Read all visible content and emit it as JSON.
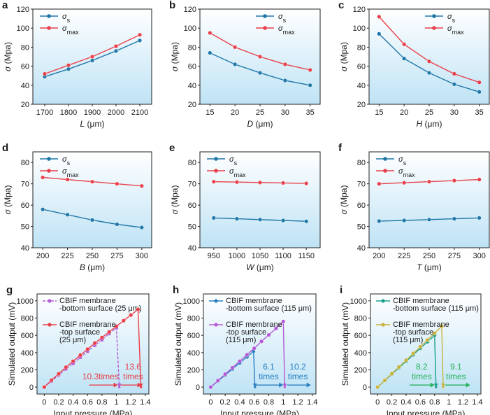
{
  "colors": {
    "sigma_s": "#1f77a8",
    "sigma_max": "#e8404a",
    "bg_top": "#ffffff",
    "bg_bottom": "#bfe3f5",
    "purple": "#b35ad6",
    "blue": "#2a7fc1",
    "teal": "#1aa18a",
    "olive": "#c7b23d",
    "green": "#27b35a"
  },
  "chart_data": [
    {
      "panel": "a",
      "type": "line",
      "xlabel": "L (μm)",
      "xlabel_sym": "L",
      "xlabel_unit": " (μm)",
      "ylabel": "σ (Mpa)",
      "ylabel_sym": "σ",
      "ylabel_unit": " (Mpa)",
      "xlim": [
        1650,
        2150
      ],
      "ylim": [
        20,
        120
      ],
      "xticks": [
        1700,
        1800,
        1900,
        2000,
        2100
      ],
      "yticks": [
        20,
        40,
        60,
        80,
        100,
        120
      ],
      "x": [
        1700,
        1800,
        1900,
        2000,
        2100
      ],
      "legend": "top-left",
      "series": [
        {
          "name": "σs",
          "sym": "σ",
          "sub": "s",
          "color_key": "sigma_s",
          "values": [
            49,
            57,
            66,
            76,
            87
          ]
        },
        {
          "name": "σmax",
          "sym": "σ",
          "sub": "max",
          "color_key": "sigma_max",
          "values": [
            52,
            61,
            70,
            81,
            93
          ]
        }
      ]
    },
    {
      "panel": "b",
      "type": "line",
      "xlabel": "D (μm)",
      "xlabel_sym": "D",
      "xlabel_unit": " (μm)",
      "ylabel": "σ (Mpa)",
      "ylabel_sym": "σ",
      "ylabel_unit": " (Mpa)",
      "xlim": [
        13,
        37
      ],
      "ylim": [
        20,
        120
      ],
      "xticks": [
        15,
        20,
        25,
        30,
        35
      ],
      "yticks": [
        20,
        40,
        60,
        80,
        100,
        120
      ],
      "x": [
        15,
        20,
        25,
        30,
        35
      ],
      "legend": "top-right",
      "series": [
        {
          "name": "σs",
          "sym": "σ",
          "sub": "s",
          "color_key": "sigma_s",
          "values": [
            74,
            62,
            53,
            45,
            40
          ]
        },
        {
          "name": "σmax",
          "sym": "σ",
          "sub": "max",
          "color_key": "sigma_max",
          "values": [
            95,
            80,
            70,
            62,
            56
          ]
        }
      ]
    },
    {
      "panel": "c",
      "type": "line",
      "xlabel": "H (μm)",
      "xlabel_sym": "H",
      "xlabel_unit": " (μm)",
      "ylabel": "σ (Mpa)",
      "ylabel_sym": "σ",
      "ylabel_unit": " (Mpa)",
      "xlim": [
        13,
        37
      ],
      "ylim": [
        20,
        120
      ],
      "xticks": [
        15,
        20,
        25,
        30,
        35
      ],
      "yticks": [
        20,
        40,
        60,
        80,
        100,
        120
      ],
      "x": [
        15,
        20,
        25,
        30,
        35
      ],
      "legend": "top-right",
      "series": [
        {
          "name": "σs",
          "sym": "σ",
          "sub": "s",
          "color_key": "sigma_s",
          "values": [
            94,
            68,
            53,
            41,
            33
          ]
        },
        {
          "name": "σmax",
          "sym": "σ",
          "sub": "max",
          "color_key": "sigma_max",
          "values": [
            112,
            83,
            65,
            52,
            43
          ]
        }
      ]
    },
    {
      "panel": "d",
      "type": "line",
      "xlabel": "B (μm)",
      "xlabel_sym": "B",
      "xlabel_unit": " (μm)",
      "ylabel": "σ (Mpa)",
      "ylabel_sym": "σ",
      "ylabel_unit": " (Mpa)",
      "xlim": [
        190,
        310
      ],
      "ylim": [
        40,
        85
      ],
      "xticks": [
        200,
        225,
        250,
        275,
        300
      ],
      "yticks": [
        40,
        50,
        60,
        70,
        80
      ],
      "x": [
        200,
        225,
        250,
        275,
        300
      ],
      "legend": "top-left",
      "series": [
        {
          "name": "σs",
          "sym": "σ",
          "sub": "s",
          "color_key": "sigma_s",
          "values": [
            58,
            55.5,
            53,
            51,
            49.5
          ]
        },
        {
          "name": "σmax",
          "sym": "σ",
          "sub": "max",
          "color_key": "sigma_max",
          "values": [
            73,
            72,
            71,
            70,
            69
          ]
        }
      ]
    },
    {
      "panel": "e",
      "type": "line",
      "xlabel": "W (μm)",
      "xlabel_sym": "W",
      "xlabel_unit": " (μm)",
      "ylabel": "σ (Mpa)",
      "ylabel_sym": "σ",
      "ylabel_unit": " (Mpa)",
      "xlim": [
        920,
        1180
      ],
      "ylim": [
        40,
        85
      ],
      "xticks": [
        950,
        1000,
        1050,
        1100,
        1150
      ],
      "yticks": [
        40,
        50,
        60,
        70,
        80
      ],
      "x": [
        950,
        1000,
        1050,
        1100,
        1150
      ],
      "legend": "top-left",
      "series": [
        {
          "name": "σs",
          "sym": "σ",
          "sub": "s",
          "color_key": "sigma_s",
          "values": [
            54,
            53.6,
            53.2,
            52.8,
            52.4
          ]
        },
        {
          "name": "σmax",
          "sym": "σ",
          "sub": "max",
          "color_key": "sigma_max",
          "values": [
            71,
            70.8,
            70.6,
            70.4,
            70.2
          ]
        }
      ]
    },
    {
      "panel": "f",
      "type": "line",
      "xlabel": "T (μm)",
      "xlabel_sym": "T",
      "xlabel_unit": " (μm)",
      "ylabel": "σ (Mpa)",
      "ylabel_sym": "σ",
      "ylabel_unit": " (Mpa)",
      "xlim": [
        190,
        310
      ],
      "ylim": [
        40,
        85
      ],
      "xticks": [
        200,
        225,
        250,
        275,
        300
      ],
      "yticks": [
        40,
        50,
        60,
        70,
        80
      ],
      "x": [
        200,
        225,
        250,
        275,
        300
      ],
      "legend": "top-left",
      "series": [
        {
          "name": "σs",
          "sym": "σ",
          "sub": "s",
          "color_key": "sigma_s",
          "values": [
            52.5,
            52.8,
            53.2,
            53.6,
            54
          ]
        },
        {
          "name": "σmax",
          "sym": "σ",
          "sub": "max",
          "color_key": "sigma_max",
          "values": [
            70,
            70.5,
            71,
            71.5,
            72
          ]
        }
      ]
    },
    {
      "panel": "g",
      "type": "line",
      "xlabel": "Input pressure (MPa)",
      "ylabel": "Simulated output (mV)",
      "xlim": [
        -0.1,
        1.45
      ],
      "ylim": [
        -80,
        1080
      ],
      "xticks": [
        0,
        0.2,
        0.4,
        0.6,
        0.8,
        1,
        1.2,
        1.4
      ],
      "yticks": [
        0,
        200,
        400,
        600,
        800,
        1000
      ],
      "legend": "top-left",
      "series": [
        {
          "name": "CBIF membrane -bottom surface (25 μm)",
          "lines": [
            "CBIF membrane",
            "-bottom surface (25 μm)"
          ],
          "color_key": "purple",
          "dashed": true,
          "x": [
            0,
            0.1,
            0.2,
            0.3,
            0.4,
            0.5,
            0.6,
            0.7,
            0.8,
            0.9,
            1.0,
            1.04
          ],
          "y": [
            0,
            70,
            140,
            210,
            275,
            345,
            415,
            485,
            550,
            620,
            685,
            0
          ]
        },
        {
          "name": "CBIF membrane -top surface (25 μm)",
          "lines": [
            "CBIF membrane",
            "-top surface",
            "(25 μm)"
          ],
          "color_key": "sigma_max",
          "x": [
            0,
            0.1,
            0.2,
            0.3,
            0.4,
            0.5,
            0.6,
            0.7,
            0.8,
            0.9,
            1.0,
            1.1,
            1.2,
            1.3,
            1.34
          ],
          "y": [
            0,
            80,
            155,
            230,
            300,
            370,
            440,
            510,
            575,
            640,
            705,
            770,
            835,
            900,
            0
          ]
        }
      ],
      "annotations": [
        {
          "lines": [
            "10.3times"
          ],
          "x": 0.78,
          "y": 100,
          "color_key": "sigma_max",
          "arrow": [
            0.62,
            1.02
          ]
        },
        {
          "lines": [
            "13.6",
            "times"
          ],
          "x": 1.23,
          "y": 100,
          "color_key": "sigma_max",
          "arrow": [
            1.06,
            1.35
          ]
        }
      ]
    },
    {
      "panel": "h",
      "type": "line",
      "xlabel": "Input pressure (MPa)",
      "ylabel": "Simulated output (mV)",
      "xlim": [
        -0.1,
        1.45
      ],
      "ylim": [
        -80,
        1080
      ],
      "xticks": [
        0,
        0.2,
        0.4,
        0.6,
        0.8,
        1,
        1.2,
        1.4
      ],
      "yticks": [
        0,
        200,
        400,
        600,
        800,
        1000
      ],
      "legend": "top-left",
      "series": [
        {
          "name": "CBIF membrane -bottom surface (115 μm)",
          "lines": [
            "CBIF membrane",
            "-bottom surface (115 μm)"
          ],
          "color_key": "blue",
          "x": [
            0,
            0.1,
            0.2,
            0.3,
            0.4,
            0.5,
            0.59,
            0.61
          ],
          "y": [
            0,
            70,
            140,
            210,
            280,
            350,
            415,
            0
          ]
        },
        {
          "name": "CBIF membrane -top surface (115 μm)",
          "lines": [
            "CBIF membrane",
            "-top surface",
            "(115 μm)"
          ],
          "color_key": "purple",
          "x": [
            0,
            0.1,
            0.2,
            0.3,
            0.4,
            0.5,
            0.6,
            0.7,
            0.8,
            0.9,
            1.0,
            1.02
          ],
          "y": [
            0,
            75,
            150,
            225,
            300,
            375,
            450,
            530,
            605,
            680,
            760,
            0
          ]
        }
      ],
      "annotations": [
        {
          "lines": [
            "6.1",
            "times"
          ],
          "x": 0.8,
          "y": 150,
          "color_key": "blue",
          "arrow": [
            0.62,
            1.0
          ]
        },
        {
          "lines": [
            "10.2",
            "times"
          ],
          "x": 1.2,
          "y": 150,
          "color_key": "blue",
          "arrow": [
            1.05,
            1.38
          ]
        }
      ]
    },
    {
      "panel": "i",
      "type": "line",
      "xlabel": "Input pressure (MPa)",
      "ylabel": "Simulated output (mV)",
      "xlim": [
        -0.1,
        1.45
      ],
      "ylim": [
        -80,
        1080
      ],
      "xticks": [
        0,
        0.2,
        0.4,
        0.6,
        0.8,
        1,
        1.2,
        1.4
      ],
      "yticks": [
        0,
        200,
        400,
        600,
        800,
        1000
      ],
      "legend": "top-left",
      "series": [
        {
          "name": "CBIF membrane -bottom surface (115 μm)",
          "lines": [
            "CBIF membrane",
            "-bottom surface (115 μm)"
          ],
          "color_key": "teal",
          "x": [
            0,
            0.1,
            0.2,
            0.3,
            0.4,
            0.5,
            0.6,
            0.7,
            0.8,
            0.82
          ],
          "y": [
            0,
            75,
            150,
            225,
            300,
            375,
            450,
            525,
            600,
            0
          ]
        },
        {
          "name": "CBIF membrane -top surface (115 μm)",
          "lines": [
            "CBIF membrane",
            "-top surface",
            "(115 μm)"
          ],
          "color_key": "olive",
          "x": [
            0,
            0.1,
            0.2,
            0.3,
            0.4,
            0.5,
            0.6,
            0.7,
            0.8,
            0.9,
            0.92
          ],
          "y": [
            0,
            78,
            156,
            234,
            312,
            390,
            468,
            546,
            624,
            705,
            0
          ]
        }
      ],
      "annotations": [
        {
          "lines": [
            "8.2",
            "times"
          ],
          "x": 0.62,
          "y": 150,
          "color_key": "green",
          "arrow": [
            0.45,
            0.8
          ]
        },
        {
          "lines": [
            "9.1",
            "times"
          ],
          "x": 1.1,
          "y": 150,
          "color_key": "green",
          "arrow": [
            0.95,
            1.3
          ]
        }
      ]
    }
  ]
}
